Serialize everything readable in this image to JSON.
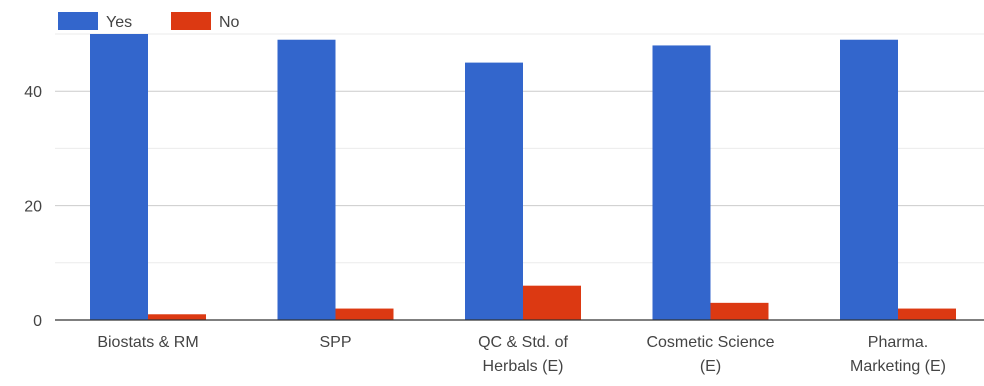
{
  "chart_data": {
    "type": "bar",
    "categories": [
      [
        "Biostats & RM"
      ],
      [
        "SPP"
      ],
      [
        "QC & Std. of",
        "Herbals (E)"
      ],
      [
        "Cosmetic Science",
        "(E)"
      ],
      [
        "Pharma.",
        "Marketing (E)"
      ]
    ],
    "series": [
      {
        "name": "Yes",
        "color": "#3366cc",
        "values": [
          50,
          49,
          45,
          48,
          49
        ]
      },
      {
        "name": "No",
        "color": "#dc3912",
        "values": [
          1,
          2,
          6,
          3,
          2
        ]
      }
    ],
    "y_ticks": [
      0,
      20,
      40
    ],
    "ylim": [
      0,
      50
    ],
    "grid": true,
    "legend_position": "top-left"
  }
}
